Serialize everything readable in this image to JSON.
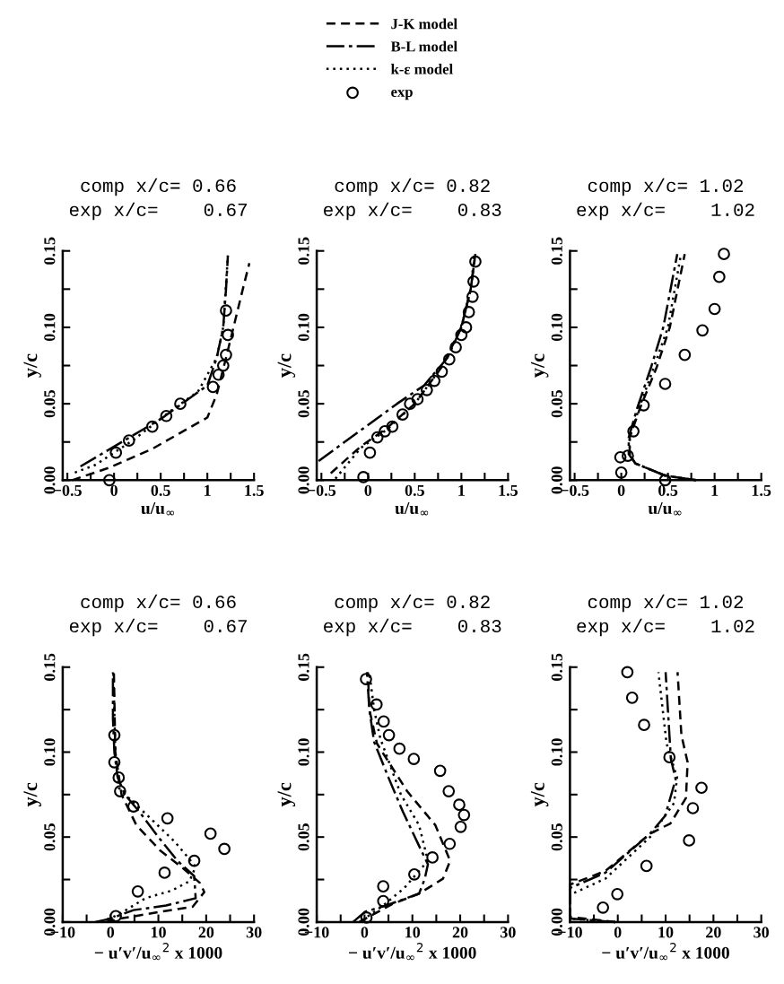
{
  "chart_data": [
    {
      "type": "line",
      "title": "comp x/c= 0.66\nexp x/c=    0.67",
      "xlabel": "u/u$_{∞}$",
      "ylabel": "y/c",
      "legend": "top",
      "xlim": [
        -0.55,
        1.5
      ],
      "ylim": [
        0,
        0.15
      ],
      "xticks": [
        {
          "value": -0.5,
          "label": "−0.5"
        },
        {
          "value": -0.25,
          "label": null
        },
        0,
        {
          "value": 0.25,
          "label": null
        },
        0.5,
        {
          "value": 0.75,
          "label": null
        },
        1,
        {
          "value": 1.25,
          "label": null
        },
        1.5
      ],
      "yticks": [
        {
          "value": 0,
          "label": "0.00"
        },
        {
          "value": 0.025,
          "label": null
        },
        {
          "value": 0.05,
          "label": "0.05"
        },
        {
          "value": 0.075,
          "label": null
        },
        {
          "value": 0.1,
          "label": "0.10"
        },
        {
          "value": 0.125,
          "label": null
        },
        {
          "value": 0.15,
          "label": "0.15"
        }
      ],
      "series": [
        {
          "name": "J-K model",
          "type": "line",
          "line_style": "dashed",
          "color": "#000000",
          "x": [
            -0.45,
            -0.06,
            0.41,
            1.0,
            1.1,
            1.2,
            1.28,
            1.38,
            1.45
          ],
          "values": [
            0.0,
            0.008,
            0.0205,
            0.041,
            0.056,
            0.08,
            0.1,
            0.125,
            0.142
          ]
        },
        {
          "name": "B-L model",
          "type": "line",
          "line_style": "dashdot",
          "color": "#000000",
          "x": [
            -0.36,
            0.5,
            1.0,
            1.1,
            1.17,
            1.2,
            1.22
          ],
          "values": [
            0.009,
            0.04,
            0.062,
            0.08,
            0.1,
            0.125,
            0.147
          ]
        },
        {
          "name": "k-ε model",
          "type": "line",
          "line_style": "dotted",
          "color": "#000000",
          "x": [
            -0.42,
            -0.2,
            0.2,
            0.6,
            0.9,
            1.1,
            1.17,
            1.22
          ],
          "values": [
            0.005,
            0.01,
            0.026,
            0.045,
            0.058,
            0.08,
            0.1,
            0.147
          ]
        },
        {
          "name": "exp",
          "type": "scatter",
          "marker": "circle",
          "color": "#000000",
          "x": [
            -0.05,
            0.02,
            0.16,
            0.41,
            0.56,
            0.71,
            1.06,
            1.12,
            1.17,
            1.2,
            1.22,
            1.2
          ],
          "values": [
            0.0,
            0.018,
            0.026,
            0.035,
            0.042,
            0.05,
            0.061,
            0.069,
            0.075,
            0.082,
            0.095,
            0.111
          ]
        }
      ]
    },
    {
      "type": "line",
      "title": "comp x/c= 0.82\nexp x/c=    0.83",
      "xlabel": "u/u$_{∞}$",
      "ylabel": "y/c",
      "xlim": [
        -0.55,
        1.5
      ],
      "ylim": [
        0,
        0.15
      ],
      "xticks": [
        {
          "value": -0.5,
          "label": "−0.5"
        },
        {
          "value": -0.25,
          "label": null
        },
        0,
        {
          "value": 0.25,
          "label": null
        },
        0.5,
        {
          "value": 0.75,
          "label": null
        },
        1,
        {
          "value": 1.25,
          "label": null
        },
        1.5
      ],
      "yticks": [
        {
          "value": 0,
          "label": "0.00"
        },
        {
          "value": 0.025,
          "label": null
        },
        {
          "value": 0.05,
          "label": "0.05"
        },
        {
          "value": 0.075,
          "label": null
        },
        {
          "value": 0.1,
          "label": "0.10"
        },
        {
          "value": 0.125,
          "label": null
        },
        {
          "value": 0.15,
          "label": "0.15"
        }
      ],
      "series": [
        {
          "name": "J-K model",
          "type": "line",
          "line_style": "dashed",
          "color": "#000000",
          "x": [
            -0.4,
            -0.08,
            0.2,
            0.5,
            0.8,
            1.0,
            1.1,
            1.15
          ],
          "values": [
            0.0045,
            0.022,
            0.034,
            0.05,
            0.075,
            0.1,
            0.125,
            0.148
          ]
        },
        {
          "name": "B-L model",
          "type": "line",
          "line_style": "dashdot",
          "color": "#000000",
          "x": [
            -0.53,
            0.31,
            0.6,
            0.85,
            1.0,
            1.1,
            1.15
          ],
          "values": [
            0.0125,
            0.05,
            0.062,
            0.08,
            0.1,
            0.125,
            0.148
          ]
        },
        {
          "name": "k-ε model",
          "type": "line",
          "line_style": "dotted",
          "color": "#000000",
          "x": [
            -0.35,
            -0.08,
            0.2,
            0.5,
            0.8,
            1.0,
            1.1,
            1.14
          ],
          "values": [
            0.001,
            0.021,
            0.033,
            0.05,
            0.075,
            0.1,
            0.125,
            0.148
          ]
        },
        {
          "name": "exp",
          "type": "scatter",
          "marker": "circle",
          "color": "#000000",
          "x": [
            -0.05,
            0.02,
            0.1,
            0.18,
            0.26,
            0.37,
            0.45,
            0.53,
            0.63,
            0.71,
            0.79,
            0.87,
            0.94,
            1.0,
            1.05,
            1.08,
            1.12,
            1.13,
            1.15
          ],
          "values": [
            0.002,
            0.018,
            0.028,
            0.032,
            0.035,
            0.043,
            0.05,
            0.053,
            0.059,
            0.065,
            0.071,
            0.079,
            0.087,
            0.095,
            0.1,
            0.11,
            0.12,
            0.13,
            0.143
          ]
        }
      ]
    },
    {
      "type": "line",
      "title": "comp x/c= 1.02\nexp x/c=    1.02",
      "xlabel": "u/u$_{∞}$",
      "ylabel": "y/c",
      "xlim": [
        -0.55,
        1.5
      ],
      "ylim": [
        0,
        0.15
      ],
      "xticks": [
        {
          "value": -0.5,
          "label": "−0.5"
        },
        {
          "value": -0.25,
          "label": null
        },
        0,
        {
          "value": 0.25,
          "label": null
        },
        0.5,
        {
          "value": 0.75,
          "label": null
        },
        1,
        {
          "value": 1.25,
          "label": null
        },
        1.5
      ],
      "yticks": [
        {
          "value": 0,
          "label": "0.00"
        },
        {
          "value": 0.025,
          "label": null
        },
        {
          "value": 0.05,
          "label": "0.05"
        },
        {
          "value": 0.075,
          "label": null
        },
        {
          "value": 0.1,
          "label": "0.10"
        },
        {
          "value": 0.125,
          "label": null
        },
        {
          "value": 0.15,
          "label": "0.15"
        }
      ],
      "series": [
        {
          "name": "J-K model",
          "type": "line",
          "line_style": "dashed",
          "color": "#000000",
          "x": [
            0.8,
            0.47,
            0.15,
            0.09,
            0.09,
            0.2,
            0.38,
            0.52,
            0.68
          ],
          "values": [
            0.0,
            0.003,
            0.011,
            0.017,
            0.028,
            0.047,
            0.074,
            0.1,
            0.148
          ]
        },
        {
          "name": "B-L model",
          "type": "line",
          "line_style": "dashdot",
          "color": "#000000",
          "x": [
            0.8,
            0.47,
            0.15,
            0.08,
            0.08,
            0.17,
            0.32,
            0.45,
            0.6
          ],
          "values": [
            0.0,
            0.003,
            0.011,
            0.017,
            0.028,
            0.047,
            0.074,
            0.1,
            0.148
          ]
        },
        {
          "name": "k-ε model",
          "type": "line",
          "line_style": "dotted",
          "color": "#000000",
          "x": [
            0.8,
            0.47,
            0.15,
            0.09,
            0.09,
            0.19,
            0.35,
            0.5,
            0.64
          ],
          "values": [
            0.0,
            0.003,
            0.011,
            0.017,
            0.028,
            0.047,
            0.074,
            0.1,
            0.148
          ]
        },
        {
          "name": "exp",
          "type": "scatter",
          "marker": "circle",
          "color": "#000000",
          "x": [
            0.47,
            0.0,
            -0.01,
            0.07,
            0.13,
            0.24,
            0.47,
            0.68,
            0.87,
            1.0,
            1.05,
            1.1
          ],
          "values": [
            0.0,
            0.005,
            0.015,
            0.016,
            0.032,
            0.049,
            0.063,
            0.082,
            0.098,
            0.112,
            0.133,
            0.148
          ]
        }
      ]
    },
    {
      "type": "line",
      "title": "comp x/c= 0.66\nexp x/c=    0.67",
      "xlabel": "− u′v′/u$_{∞}$$^{2}$ x 1000",
      "ylabel": "y/c",
      "xlim": [
        -10,
        30
      ],
      "ylim": [
        0,
        0.15
      ],
      "xticks": [
        {
          "value": -10,
          "label": "−10"
        },
        {
          "value": -5,
          "label": null
        },
        0,
        {
          "value": 5,
          "label": null
        },
        10,
        {
          "value": 15,
          "label": null
        },
        20,
        {
          "value": 25,
          "label": null
        },
        30
      ],
      "yticks": [
        {
          "value": 0,
          "label": "0.00"
        },
        {
          "value": 0.025,
          "label": null
        },
        {
          "value": 0.05,
          "label": "0.05"
        },
        {
          "value": 0.075,
          "label": null
        },
        {
          "value": 0.1,
          "label": "0.10"
        },
        {
          "value": 0.125,
          "label": null
        },
        {
          "value": 0.15,
          "label": "0.15"
        }
      ],
      "series": [
        {
          "name": "J-K model",
          "type": "line",
          "line_style": "dashed",
          "color": "#000000",
          "x": [
            -1,
            2,
            10.4,
            17.2,
            19.6,
            18.7,
            15,
            10.4,
            5.4,
            2.3,
            1,
            0.7
          ],
          "values": [
            0.0,
            0.002,
            0.006,
            0.009,
            0.0176,
            0.023,
            0.032,
            0.042,
            0.057,
            0.075,
            0.1,
            0.147
          ]
        },
        {
          "name": "B-L model",
          "type": "line",
          "line_style": "dashdot",
          "color": "#000000",
          "x": [
            -3.2,
            0,
            4.8,
            11.6,
            17.8,
            17.5,
            14,
            10,
            6,
            3,
            1.5,
            0.8,
            0.5,
            0.5
          ],
          "values": [
            0.0,
            0.002,
            0.007,
            0.0097,
            0.014,
            0.027,
            0.036,
            0.05,
            0.065,
            0.075,
            0.085,
            0.1,
            0.12,
            0.147
          ]
        },
        {
          "name": "k-ε model",
          "type": "line",
          "line_style": "dotted",
          "color": "#000000",
          "x": [
            -2,
            1.7,
            7.3,
            12.8,
            16.5,
            17.8,
            13.5,
            9.1,
            4.2,
            1.7,
            1,
            0.6
          ],
          "values": [
            0.0,
            0.0044,
            0.014,
            0.0185,
            0.024,
            0.0326,
            0.047,
            0.059,
            0.072,
            0.079,
            0.1,
            0.147
          ]
        },
        {
          "name": "exp",
          "type": "scatter",
          "marker": "circle",
          "color": "#000000",
          "x": [
            1.1,
            5.7,
            11.3,
            17.5,
            23.8,
            20.9,
            11.9,
            4.8,
            2.0,
            1.7,
            0.8,
            0.8
          ],
          "values": [
            0.0035,
            0.018,
            0.029,
            0.036,
            0.043,
            0.052,
            0.061,
            0.068,
            0.077,
            0.085,
            0.094,
            0.11
          ]
        }
      ]
    },
    {
      "type": "line",
      "title": "comp x/c= 0.82\nexp x/c=    0.83",
      "xlabel": "− u′v′/u$_{∞}$$^{2}$ x 1000",
      "ylabel": "y/c",
      "xlim": [
        -10,
        30
      ],
      "ylim": [
        0,
        0.15
      ],
      "xticks": [
        {
          "value": -10,
          "label": "−10"
        },
        {
          "value": -5,
          "label": null
        },
        0,
        {
          "value": 5,
          "label": null
        },
        10,
        {
          "value": 15,
          "label": null
        },
        20,
        {
          "value": 25,
          "label": null
        },
        30
      ],
      "yticks": [
        {
          "value": 0,
          "label": "0.00"
        },
        {
          "value": 0.025,
          "label": null
        },
        {
          "value": 0.05,
          "label": "0.05"
        },
        {
          "value": 0.075,
          "label": null
        },
        {
          "value": 0.1,
          "label": "0.10"
        },
        {
          "value": 0.125,
          "label": null
        },
        {
          "value": 0.15,
          "label": "0.15"
        }
      ],
      "series": [
        {
          "name": "J-K model",
          "type": "line",
          "line_style": "dashed",
          "color": "#000000",
          "x": [
            -1.1,
            5.8,
            11.4,
            16.4,
            17.9,
            14.8,
            8.9,
            2.6,
            1,
            0.7
          ],
          "values": [
            0.0,
            0.0106,
            0.0167,
            0.0255,
            0.036,
            0.057,
            0.077,
            0.105,
            0.125,
            0.147
          ]
        },
        {
          "name": "B-L model",
          "type": "line",
          "line_style": "dashdot",
          "color": "#000000",
          "x": [
            -2.4,
            0.1,
            4.5,
            11.4,
            12.6,
            13.25,
            11.7,
            8,
            5,
            2,
            1,
            0.5
          ],
          "values": [
            0.0,
            0.006,
            0.0097,
            0.0167,
            0.0255,
            0.034,
            0.043,
            0.065,
            0.085,
            0.106,
            0.125,
            0.147
          ]
        },
        {
          "name": "k-ε model",
          "type": "line",
          "line_style": "dotted",
          "color": "#000000",
          "x": [
            -0.5,
            3.9,
            8.3,
            13.25,
            11.4,
            7.6,
            3.3,
            2,
            1
          ],
          "values": [
            0.001,
            0.0097,
            0.02,
            0.036,
            0.057,
            0.075,
            0.108,
            0.125,
            0.147
          ]
        },
        {
          "name": "exp",
          "type": "scatter",
          "marker": "circle",
          "color": "#000000",
          "x": [
            0.4,
            3.9,
            3.9,
            10.4,
            14.2,
            17.8,
            20.1,
            20.8,
            19.8,
            17.6,
            15.8,
            10.3,
            7.3,
            5.1,
            4,
            2.5,
            0.3
          ],
          "values": [
            0.0026,
            0.0123,
            0.021,
            0.028,
            0.038,
            0.046,
            0.056,
            0.063,
            0.069,
            0.077,
            0.089,
            0.096,
            0.102,
            0.11,
            0.118,
            0.128,
            0.143
          ]
        }
      ]
    },
    {
      "type": "line",
      "title": "comp x/c= 1.02\nexp x/c=    1.02",
      "xlabel": "− u′v′/u$_{∞}$$^{2}$ x 1000",
      "ylabel": "y/c",
      "xlim": [
        -10,
        30
      ],
      "ylim": [
        0,
        0.15
      ],
      "xticks": [
        {
          "value": -10,
          "label": "−10"
        },
        {
          "value": -5,
          "label": null
        },
        0,
        {
          "value": 5,
          "label": null
        },
        10,
        {
          "value": 15,
          "label": null
        },
        20,
        {
          "value": 25,
          "label": null
        },
        30
      ],
      "yticks": [
        {
          "value": 0,
          "label": "0.00"
        },
        {
          "value": 0.025,
          "label": null
        },
        {
          "value": 0.05,
          "label": "0.05"
        },
        {
          "value": 0.075,
          "label": null
        },
        {
          "value": 0.1,
          "label": "0.10"
        },
        {
          "value": 0.125,
          "label": null
        },
        {
          "value": 0.15,
          "label": "0.15"
        }
      ],
      "series": [
        {
          "name": "J-K model",
          "type": "line",
          "line_style": "dashed",
          "color": "#000000",
          "x": [
            -0.5,
            -10,
            -10,
            -2.6,
            6.75,
            11,
            14.25,
            14.6,
            13.3,
            12.5
          ],
          "values": [
            0.0,
            0.003,
            0.022,
            0.03,
            0.052,
            0.058,
            0.073,
            0.094,
            0.11,
            0.147
          ]
        },
        {
          "name": "B-L model",
          "type": "line",
          "line_style": "dashdot",
          "color": "#000000",
          "x": [
            -0.5,
            -10,
            -10,
            -2.6,
            6.75,
            9.9,
            12.1,
            11.1,
            10.8,
            10
          ],
          "values": [
            0.0,
            0.002,
            0.02,
            0.029,
            0.052,
            0.0625,
            0.084,
            0.096,
            0.11,
            0.147
          ]
        },
        {
          "name": "k-ε model",
          "type": "line",
          "line_style": "dotted",
          "color": "#000000",
          "x": [
            -0.5,
            -10,
            -10,
            -2.6,
            6.75,
            11.75,
            12.4,
            10.2,
            8.5
          ],
          "values": [
            0.0,
            0.002,
            0.016,
            0.0255,
            0.05,
            0.07,
            0.085,
            0.105,
            0.147
          ]
        },
        {
          "name": "exp",
          "type": "scatter",
          "marker": "circle",
          "color": "#000000",
          "x": [
            -3.1,
            -0.1,
            6,
            14.9,
            15.7,
            17.5,
            10.8,
            5.5,
            3,
            2
          ],
          "values": [
            0.0085,
            0.0164,
            0.033,
            0.048,
            0.067,
            0.079,
            0.097,
            0.116,
            0.132,
            0.147
          ]
        }
      ]
    }
  ]
}
